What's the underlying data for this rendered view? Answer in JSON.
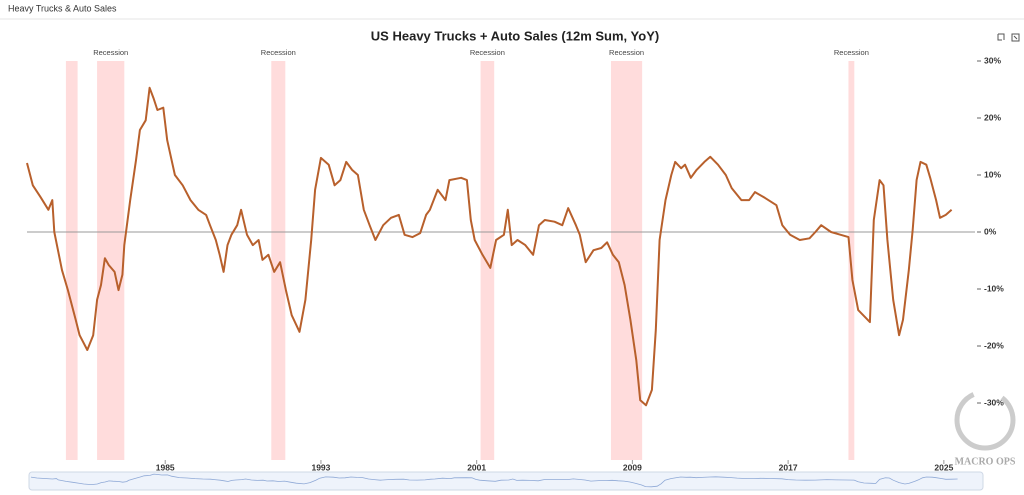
{
  "header": {
    "title": "Heavy Trucks & Auto Sales"
  },
  "chart_data": {
    "type": "line",
    "title": "US Heavy Trucks + Auto Sales (12m Sum, YoY)",
    "watermark": "MACRO OPS",
    "xlim": [
      1977.9,
      2026.6
    ],
    "xticks": [
      1985,
      1993,
      2001,
      2009,
      2017,
      2025
    ],
    "ylim": [
      -40,
      30
    ],
    "yticks": [
      {
        "value": 30,
        "label": "30%"
      },
      {
        "value": 20,
        "label": "20%"
      },
      {
        "value": 10,
        "label": "10%"
      },
      {
        "value": 0,
        "label": "0%"
      },
      {
        "value": -10,
        "label": "-10%"
      },
      {
        "value": -20,
        "label": "-20%"
      },
      {
        "value": -30,
        "label": "-30%"
      }
    ],
    "recessions": [
      {
        "start": 1979.9,
        "end": 1980.5,
        "label": null
      },
      {
        "start": 1981.5,
        "end": 1982.9,
        "label": "Recession"
      },
      {
        "start": 1990.45,
        "end": 1991.17,
        "label": "Recession"
      },
      {
        "start": 2001.2,
        "end": 2001.9,
        "label": "Recession"
      },
      {
        "start": 2007.9,
        "end": 2009.5,
        "label": "Recession"
      },
      {
        "start": 2020.1,
        "end": 2020.4,
        "label": "Recession"
      }
    ],
    "recession_color": "#ffdcdc",
    "series": [
      {
        "name": "US Heavy Trucks + Auto Sales",
        "color": "#b8602c",
        "x": [
          1977.9,
          1978.2,
          1978.6,
          1979.0,
          1979.2,
          1979.3,
          1979.7,
          1980.0,
          1980.4,
          1980.6,
          1981.0,
          1981.3,
          1981.5,
          1981.7,
          1981.9,
          1982.1,
          1982.4,
          1982.6,
          1982.8,
          1982.9,
          1983.2,
          1983.5,
          1983.7,
          1984.0,
          1984.2,
          1984.4,
          1984.6,
          1984.9,
          1985.1,
          1985.5,
          1985.9,
          1986.3,
          1986.7,
          1987.1,
          1987.3,
          1987.6,
          1987.8,
          1988.0,
          1988.2,
          1988.4,
          1988.7,
          1988.9,
          1989.2,
          1989.5,
          1989.8,
          1990.0,
          1990.3,
          1990.6,
          1990.9,
          1991.2,
          1991.5,
          1991.9,
          1992.2,
          1992.5,
          1992.7,
          1993.0,
          1993.4,
          1993.7,
          1994.0,
          1994.3,
          1994.6,
          1994.9,
          1995.2,
          1995.5,
          1995.8,
          1996.2,
          1996.6,
          1997.0,
          1997.3,
          1997.7,
          1998.1,
          1998.4,
          1998.6,
          1999.0,
          1999.4,
          1999.6,
          2000.2,
          2000.5,
          2000.7,
          2000.9,
          2001.3,
          2001.7,
          2002.0,
          2002.4,
          2002.6,
          2002.8,
          2003.1,
          2003.5,
          2003.9,
          2004.2,
          2004.5,
          2005.0,
          2005.4,
          2005.7,
          2006.1,
          2006.3,
          2006.6,
          2007.0,
          2007.4,
          2007.7,
          2008.0,
          2008.3,
          2008.6,
          2008.9,
          2009.2,
          2009.4,
          2009.7,
          2010.0,
          2010.2,
          2010.4,
          2010.7,
          2011.0,
          2011.2,
          2011.5,
          2011.7,
          2012.0,
          2012.3,
          2012.7,
          2013.0,
          2013.4,
          2013.8,
          2014.1,
          2014.6,
          2015.0,
          2015.3,
          2015.8,
          2016.4,
          2016.7,
          2017.1,
          2017.6,
          2018.1,
          2018.4,
          2018.7,
          2019.2,
          2019.7,
          2020.1,
          2020.3,
          2020.6,
          2021.0,
          2021.2,
          2021.4,
          2021.7,
          2021.9,
          2022.1,
          2022.4,
          2022.7,
          2022.9,
          2023.2,
          2023.4,
          2023.6,
          2023.8,
          2024.1,
          2024.3,
          2024.6,
          2024.8,
          2025.1,
          2025.4
        ],
        "values": [
          12.1,
          8.2,
          6.1,
          3.9,
          5.6,
          0,
          -6.7,
          -10.2,
          -15.4,
          -18.1,
          -20.7,
          -18.1,
          -11.9,
          -9.3,
          -4.6,
          -5.8,
          -7.0,
          -10.2,
          -7.5,
          -2.3,
          5.6,
          12.6,
          17.9,
          19.6,
          25.3,
          23.5,
          21.4,
          21.8,
          16.1,
          10.0,
          8.2,
          5.6,
          3.9,
          3.0,
          1.2,
          -1.4,
          -4.0,
          -7.0,
          -2.3,
          -0.5,
          1.2,
          3.9,
          -0.5,
          -2.3,
          -1.4,
          -4.9,
          -4.0,
          -7.0,
          -5.3,
          -10.2,
          -14.6,
          -17.5,
          -11.9,
          -1.4,
          7.4,
          13.0,
          11.8,
          8.2,
          9.1,
          12.3,
          10.9,
          10.0,
          3.9,
          1.2,
          -1.4,
          1.2,
          2.5,
          3.0,
          -0.5,
          -0.9,
          -0.2,
          3.0,
          3.9,
          7.4,
          5.6,
          9.1,
          9.5,
          9.1,
          2.1,
          -1.4,
          -4.0,
          -6.3,
          -1.4,
          -0.5,
          3.9,
          -2.3,
          -1.4,
          -2.3,
          -4.0,
          1.2,
          2.1,
          1.8,
          1.2,
          4.2,
          1.2,
          -0.5,
          -5.3,
          -3.2,
          -2.8,
          -1.8,
          -4.0,
          -5.3,
          -9.3,
          -15.4,
          -22.5,
          -29.5,
          -30.4,
          -27.7,
          -17.2,
          -1.4,
          5.6,
          10.0,
          12.3,
          11.2,
          11.8,
          9.5,
          10.9,
          12.3,
          13.2,
          11.8,
          10.0,
          7.7,
          5.6,
          5.6,
          7.0,
          6.0,
          4.7,
          1.2,
          -0.5,
          -1.4,
          -1.1,
          0,
          1.2,
          0,
          -0.5,
          -0.9,
          -8.4,
          -13.7,
          -15.1,
          -15.8,
          2.1,
          9.1,
          8.2,
          -1.4,
          -11.9,
          -18.1,
          -15.4,
          -6.7,
          0.4,
          9.1,
          12.3,
          11.8,
          9.5,
          5.6,
          2.5,
          3.0,
          3.9
        ]
      }
    ]
  }
}
